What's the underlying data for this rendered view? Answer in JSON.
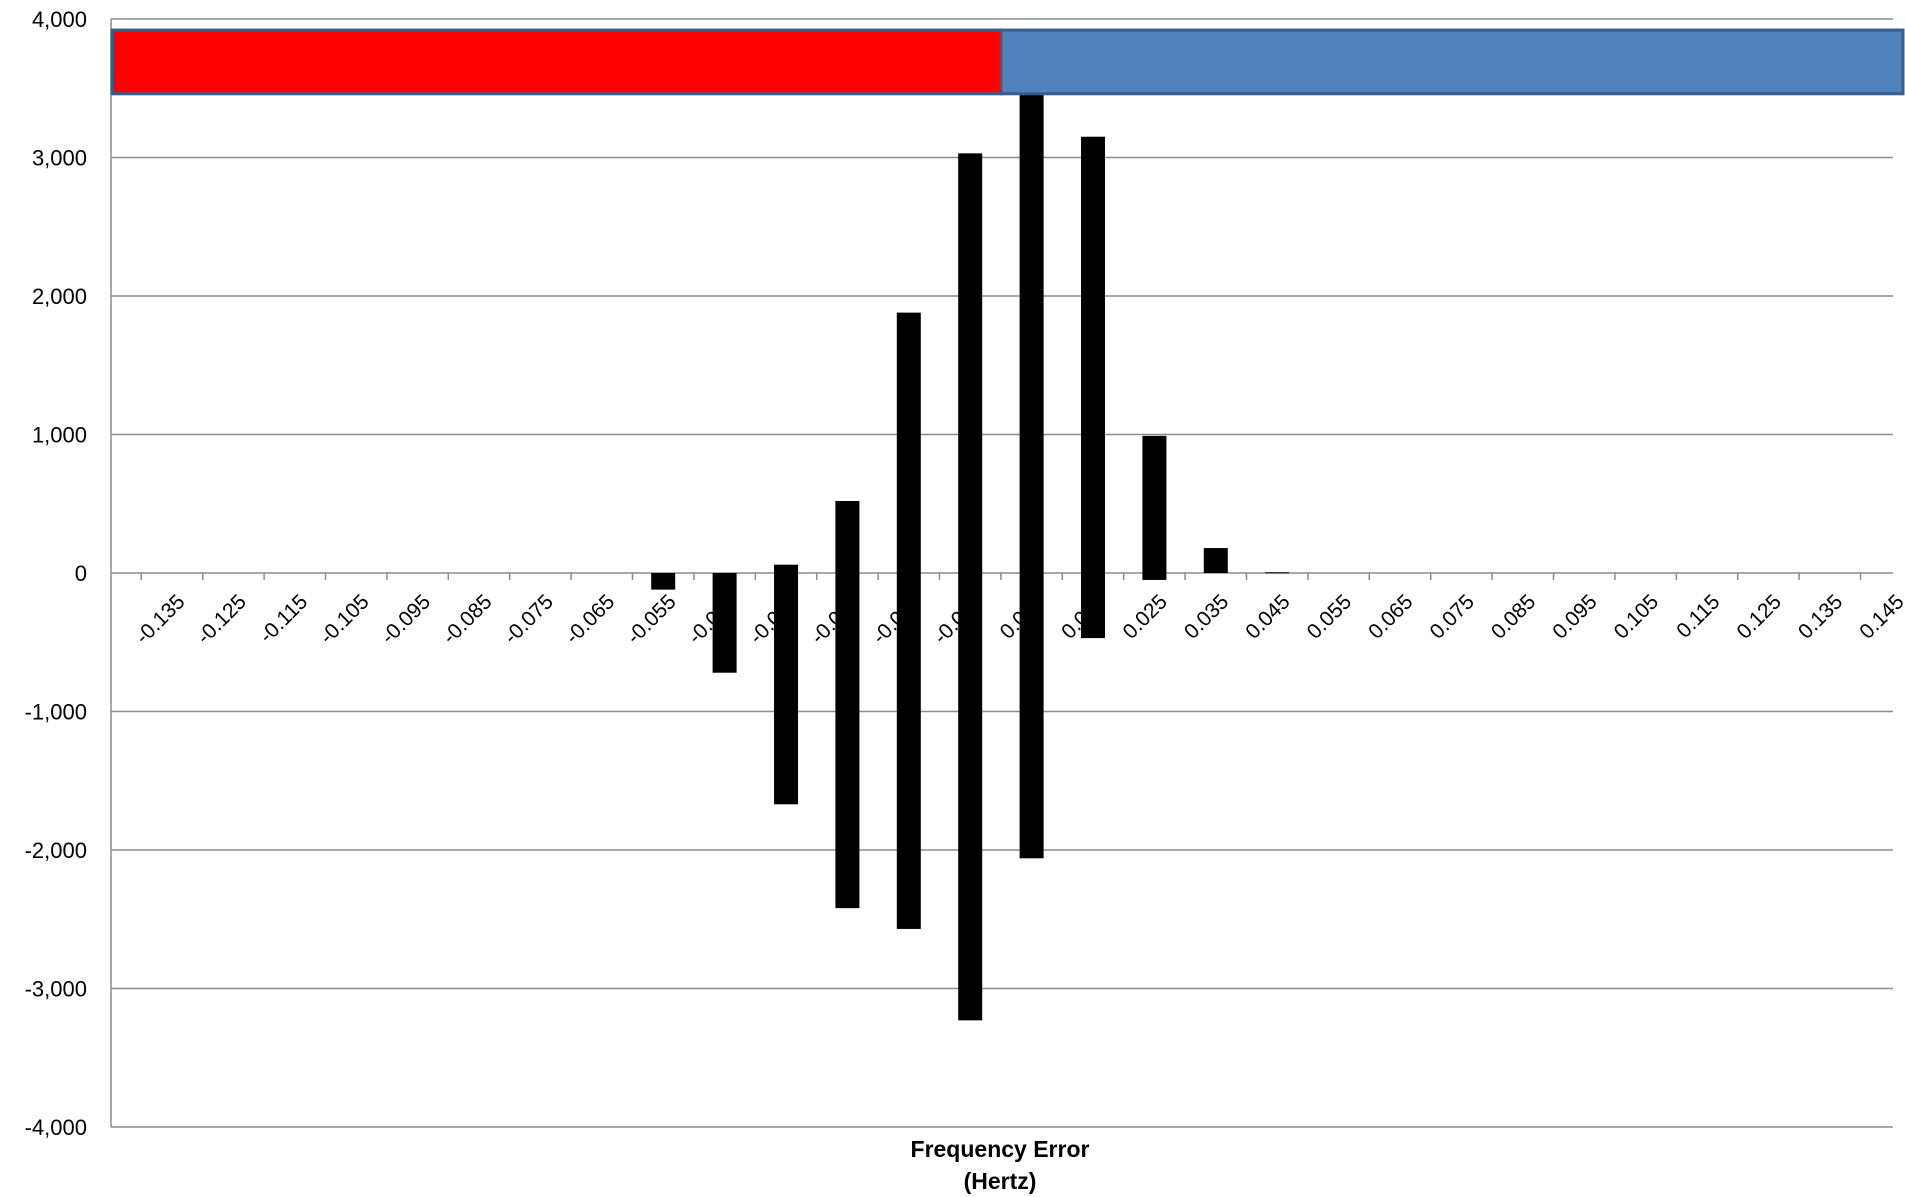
{
  "chart_data": {
    "type": "bar",
    "title": "",
    "xlabel": [
      "Frequency Error",
      "(Hertz)"
    ],
    "ylabel": "",
    "ylim": [
      -4000,
      4000
    ],
    "yticks": [
      "4,000",
      "3,000",
      "2,000",
      "1,000",
      "0",
      "-1,000",
      "-2,000",
      "-3,000",
      "-4,000"
    ],
    "ytick_values": [
      4000,
      3000,
      2000,
      1000,
      0,
      -1000,
      -2000,
      -3000,
      -4000
    ],
    "categories": [
      "-0.135",
      "-0.125",
      "-0.115",
      "-0.105",
      "-0.095",
      "-0.085",
      "-0.075",
      "-0.065",
      "-0.055",
      "-0.045",
      "-0.035",
      "-0.025",
      "-0.015",
      "-0.005",
      "0.005",
      "0.015",
      "0.025",
      "0.035",
      "0.045",
      "0.055",
      "0.065",
      "0.075",
      "0.085",
      "0.095",
      "0.105",
      "0.115",
      "0.125",
      "0.135",
      "0.145"
    ],
    "series": [
      {
        "values": [
          0,
          0,
          0,
          0,
          0,
          0,
          0,
          0,
          0,
          0,
          60,
          520,
          1880,
          3030,
          3480,
          3150,
          990,
          180,
          5,
          0,
          0,
          0,
          0,
          0,
          0,
          0,
          0,
          0,
          0
        ]
      },
      {
        "values": [
          0,
          0,
          0,
          0,
          0,
          0,
          0,
          0,
          -120,
          -720,
          -1670,
          -2420,
          -2570,
          -3230,
          -2060,
          -470,
          -50,
          0,
          0,
          0,
          0,
          0,
          0,
          0,
          0,
          0,
          0,
          0,
          0
        ]
      }
    ],
    "grid": true,
    "legend": "none",
    "top_band": {
      "range": [
        3460,
        3920
      ],
      "split_category_index": 13.5,
      "left_color": "#ff0000",
      "right_color": "#4f81bd",
      "border_color": "#385d8a"
    },
    "colors": {
      "bars": "#000000",
      "gridline": "#8c8c8c",
      "axis": "#8c8c8c"
    }
  }
}
